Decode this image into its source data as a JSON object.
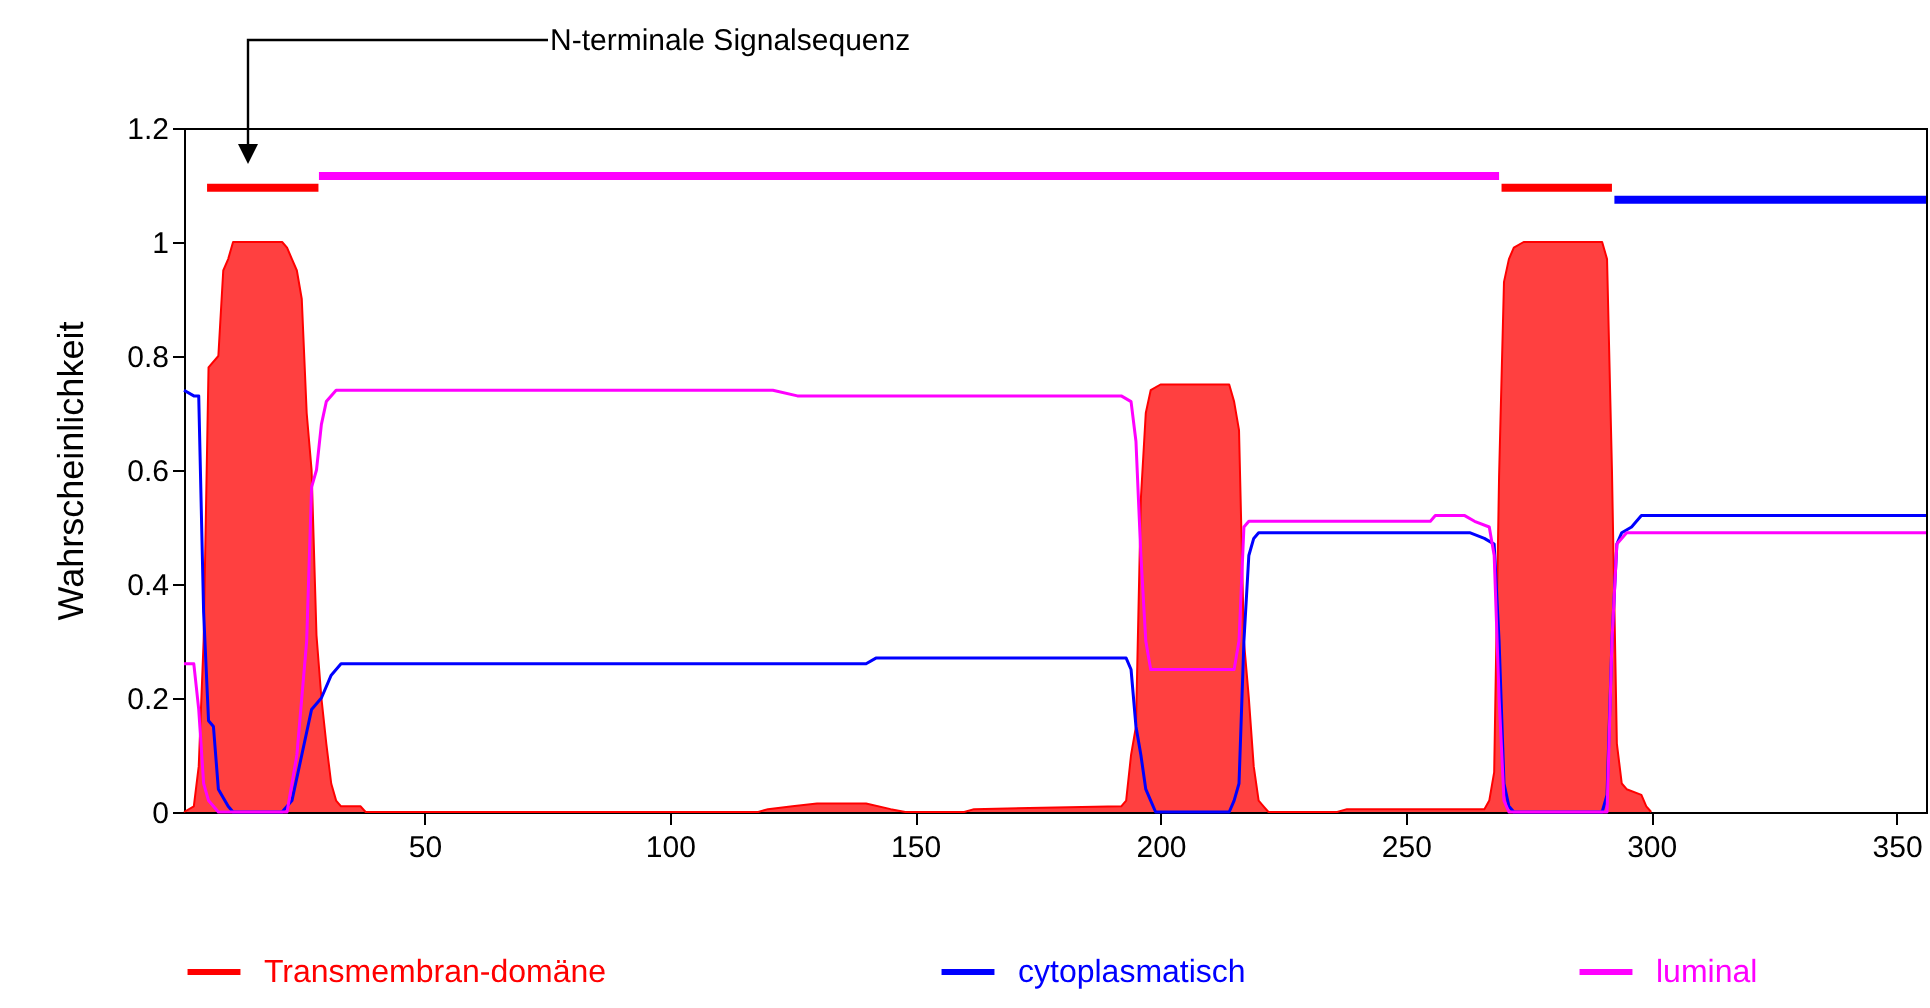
{
  "chart_data": {
    "type": "line",
    "ylabel": "Wahrscheinlichkeit",
    "xlim": [
      1,
      356
    ],
    "ylim": [
      0,
      1.2
    ],
    "xticks": [
      50,
      100,
      150,
      200,
      250,
      300,
      350
    ],
    "yticks": [
      0,
      0.2,
      0.4,
      0.6,
      0.8,
      1,
      1.2
    ],
    "legend": "bottom",
    "annotations": [
      "N-terminale Signalsequenz"
    ],
    "series": [
      {
        "type": "area",
        "name": "Transmembran-domäne",
        "color": "#ff0000",
        "x": [
          1,
          3,
          4,
          5,
          6,
          8,
          9,
          10,
          11,
          21,
          22,
          23,
          24,
          25,
          26,
          27,
          28,
          29,
          30,
          31,
          32,
          33,
          37,
          38,
          118,
          120,
          125,
          130,
          140,
          145,
          148,
          160,
          162,
          192,
          193,
          194,
          195,
          196,
          197,
          198,
          200,
          214,
          215,
          216,
          217,
          218,
          219,
          220,
          221,
          222,
          236,
          238,
          266,
          267,
          268,
          269,
          270,
          271,
          272,
          274,
          290,
          291,
          292,
          293,
          294,
          295,
          298,
          299,
          300
        ],
        "values": [
          0,
          0.01,
          0.08,
          0.3,
          0.78,
          0.8,
          0.95,
          0.97,
          1,
          1,
          0.99,
          0.97,
          0.95,
          0.9,
          0.7,
          0.6,
          0.31,
          0.2,
          0.12,
          0.05,
          0.02,
          0.01,
          0.01,
          0,
          0,
          0.005,
          0.01,
          0.015,
          0.015,
          0.005,
          0,
          0,
          0.005,
          0.01,
          0.02,
          0.1,
          0.15,
          0.55,
          0.7,
          0.74,
          0.75,
          0.75,
          0.72,
          0.67,
          0.3,
          0.2,
          0.08,
          0.02,
          0.01,
          0,
          0,
          0.005,
          0.005,
          0.02,
          0.07,
          0.59,
          0.93,
          0.97,
          0.99,
          1,
          1,
          0.97,
          0.6,
          0.12,
          0.05,
          0.04,
          0.03,
          0.01,
          0
        ]
      },
      {
        "name": "cytoplasmatisch",
        "color": "#0000ff",
        "x": [
          1,
          3,
          4,
          5,
          6,
          7,
          8,
          10,
          11,
          21,
          23,
          25,
          27,
          29,
          31,
          33,
          140,
          142,
          193,
          194,
          195,
          196,
          197,
          198,
          199,
          214,
          215,
          216,
          217,
          218,
          219,
          220,
          263,
          266,
          268,
          269,
          270,
          271,
          272,
          290,
          291,
          292,
          293,
          294,
          296,
          298,
          356
        ],
        "values": [
          0.74,
          0.73,
          0.73,
          0.35,
          0.16,
          0.15,
          0.04,
          0.01,
          0,
          0,
          0.02,
          0.1,
          0.18,
          0.2,
          0.24,
          0.26,
          0.26,
          0.27,
          0.27,
          0.25,
          0.15,
          0.1,
          0.04,
          0.02,
          0,
          0,
          0.02,
          0.05,
          0.3,
          0.45,
          0.48,
          0.49,
          0.49,
          0.48,
          0.47,
          0.3,
          0.05,
          0.01,
          0,
          0,
          0.03,
          0.3,
          0.47,
          0.49,
          0.5,
          0.52,
          0.52
        ]
      },
      {
        "name": "luminal",
        "color": "#ff00ff",
        "x": [
          1,
          3,
          4,
          5,
          6,
          8,
          22,
          24,
          26,
          27,
          28,
          29,
          30,
          32,
          121,
          126,
          192,
          194,
          195,
          196,
          197,
          198,
          215,
          216,
          217,
          218,
          220,
          255,
          256,
          262,
          264,
          267,
          268,
          269,
          270,
          271,
          291,
          292,
          293,
          295,
          356
        ],
        "values": [
          0.26,
          0.26,
          0.18,
          0.05,
          0.02,
          0,
          0,
          0.1,
          0.3,
          0.57,
          0.6,
          0.68,
          0.72,
          0.74,
          0.74,
          0.73,
          0.73,
          0.72,
          0.65,
          0.45,
          0.3,
          0.25,
          0.25,
          0.3,
          0.5,
          0.51,
          0.51,
          0.51,
          0.52,
          0.52,
          0.51,
          0.5,
          0.45,
          0.2,
          0.02,
          0,
          0,
          0.3,
          0.47,
          0.49,
          0.49
        ]
      },
      {
        "color": "#ff0000",
        "x": [
          5.7,
          28.4
        ],
        "values": [
          1.095,
          1.095
        ]
      },
      {
        "color": "#ff00ff",
        "x": [
          28.5,
          269
        ],
        "values": [
          1.116,
          1.116
        ]
      },
      {
        "color": "#ff0000",
        "x": [
          269.5,
          292
        ],
        "values": [
          1.095,
          1.095
        ]
      },
      {
        "color": "#0000ff",
        "x": [
          292.5,
          356
        ],
        "values": [
          1.074,
          1.074
        ]
      }
    ]
  }
}
